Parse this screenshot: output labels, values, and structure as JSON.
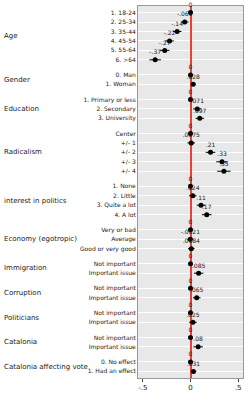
{
  "chart_data": {
    "type": "scatter",
    "marker": "circle",
    "color": "#000000",
    "data_labels": true,
    "grid": true,
    "xlim": [
      -0.55,
      0.55
    ],
    "xticks": [
      {
        "value": -0.5,
        "label": "-.5"
      },
      0,
      {
        "value": 0.5,
        "label": ".5"
      }
    ],
    "groups": [
      {
        "name": "Age",
        "categories": [
          "1. 18-24",
          "2. 25-34",
          "3. 35-44",
          "4. 45-54",
          "5. 55-64",
          "6. >64"
        ],
        "values": [
          0,
          -0.061,
          -0.14,
          -0.22,
          -0.27,
          -0.37
        ],
        "value_labels": [
          "0",
          "-.061",
          "-.14",
          "-.22",
          "-.27",
          "-.37"
        ],
        "errors": [
          null,
          0.04,
          0.045,
          0.045,
          0.05,
          0.06
        ]
      },
      {
        "name": "Gender",
        "categories": [
          "0. Man",
          "1. Woman"
        ],
        "values": [
          0,
          0.028
        ],
        "value_labels": [
          "0",
          ".028"
        ],
        "errors": [
          null,
          0.025
        ]
      },
      {
        "name": "Education",
        "categories": [
          "1. Primary or less",
          "2. Secondary",
          "3. University"
        ],
        "values": [
          0,
          0.071,
          0.097
        ],
        "value_labels": [
          "0",
          ".071",
          ".097"
        ],
        "errors": [
          null,
          0.045,
          0.045
        ]
      },
      {
        "name": "Radicalism",
        "categories": [
          "Center",
          "+/- 1",
          "+/- 2",
          "+/- 3",
          "+/- 4"
        ],
        "values": [
          0,
          0.0075,
          0.21,
          0.33,
          0.35
        ],
        "value_labels": [
          "0",
          ".0075",
          ".21",
          ".33",
          ".35"
        ],
        "errors": [
          null,
          0.04,
          0.05,
          0.06,
          0.07
        ]
      },
      {
        "name": "interest in politics",
        "categories": [
          "1. None",
          "2. Little",
          "3. Quite a lot",
          "4. A lot"
        ],
        "values": [
          0,
          0.024,
          0.11,
          0.17
        ],
        "value_labels": [
          "0",
          ".024",
          ".11",
          ".17"
        ],
        "errors": [
          null,
          0.04,
          0.045,
          0.05
        ]
      },
      {
        "name": "Economy (egotropic)",
        "categories": [
          "Very or bad",
          "Average",
          "Good or very good"
        ],
        "values": [
          0,
          -0.0021,
          0.0084
        ],
        "value_labels": [
          "0",
          "-.0021",
          ".0084"
        ],
        "errors": [
          null,
          0.03,
          0.035
        ]
      },
      {
        "name": "Immigration",
        "categories": [
          "Not important",
          "Important issue"
        ],
        "values": [
          0,
          0.085
        ],
        "value_labels": [
          "0",
          ".085"
        ],
        "errors": [
          null,
          0.05
        ]
      },
      {
        "name": "Corruption",
        "categories": [
          "Not important",
          "Important issue"
        ],
        "values": [
          0,
          0.065
        ],
        "value_labels": [
          "0",
          ".065"
        ],
        "errors": [
          null,
          0.04
        ]
      },
      {
        "name": "Politicians",
        "categories": [
          "Not important",
          "Important issue"
        ],
        "values": [
          0,
          0.025
        ],
        "value_labels": [
          "0",
          ".025"
        ],
        "errors": [
          null,
          0.04
        ]
      },
      {
        "name": "Catalonia",
        "categories": [
          "Not important",
          "Important issue"
        ],
        "values": [
          0,
          0.08
        ],
        "value_labels": [
          "0",
          ".08"
        ],
        "errors": [
          null,
          0.05
        ]
      },
      {
        "name": "Catalonia affecting vote",
        "categories": [
          "0. No effect",
          "1. Had an effect"
        ],
        "values": [
          0,
          0.031
        ],
        "value_labels": [
          "0",
          ".031"
        ],
        "errors": [
          null,
          0.03
        ]
      }
    ]
  }
}
